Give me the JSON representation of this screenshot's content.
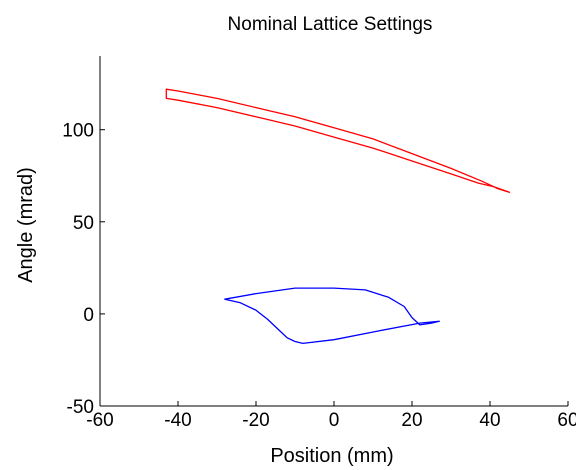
{
  "chart_data": {
    "type": "line",
    "title": "Nominal Lattice Settings",
    "xlabel": "Position (mm)",
    "ylabel": "Angle (mrad)",
    "xlim": [
      -60,
      60
    ],
    "ylim": [
      -50,
      140
    ],
    "xticks": [
      -60,
      -40,
      -20,
      0,
      20,
      40,
      60
    ],
    "yticks": [
      -50,
      0,
      50,
      100
    ],
    "grid": false,
    "axes_box": "left-bottom",
    "series": [
      {
        "color": "#ff0000",
        "closed": true,
        "points": [
          [
            -43,
            122
          ],
          [
            -40,
            121
          ],
          [
            -30,
            117
          ],
          [
            -20,
            112
          ],
          [
            -10,
            107
          ],
          [
            0,
            101
          ],
          [
            10,
            95
          ],
          [
            20,
            87
          ],
          [
            30,
            79
          ],
          [
            38,
            72
          ],
          [
            42,
            68
          ],
          [
            45,
            66
          ],
          [
            41,
            69
          ],
          [
            37,
            71
          ],
          [
            30,
            76
          ],
          [
            20,
            83
          ],
          [
            10,
            90
          ],
          [
            0,
            96
          ],
          [
            -10,
            102
          ],
          [
            -20,
            107
          ],
          [
            -30,
            112
          ],
          [
            -40,
            116
          ],
          [
            -43,
            117
          ],
          [
            -43,
            122
          ]
        ]
      },
      {
        "color": "#0000ff",
        "closed": true,
        "points": [
          [
            -28,
            8
          ],
          [
            -20,
            11
          ],
          [
            -10,
            14
          ],
          [
            0,
            14
          ],
          [
            8,
            13
          ],
          [
            14,
            9
          ],
          [
            18,
            4
          ],
          [
            20,
            -2
          ],
          [
            22,
            -6
          ],
          [
            25,
            -5
          ],
          [
            27,
            -4
          ],
          [
            22,
            -5
          ],
          [
            12,
            -9
          ],
          [
            0,
            -14
          ],
          [
            -8,
            -16
          ],
          [
            -10,
            -15
          ],
          [
            -12,
            -13
          ],
          [
            -14,
            -9
          ],
          [
            -17,
            -3
          ],
          [
            -20,
            2
          ],
          [
            -24,
            6
          ],
          [
            -28,
            8
          ]
        ]
      }
    ]
  }
}
